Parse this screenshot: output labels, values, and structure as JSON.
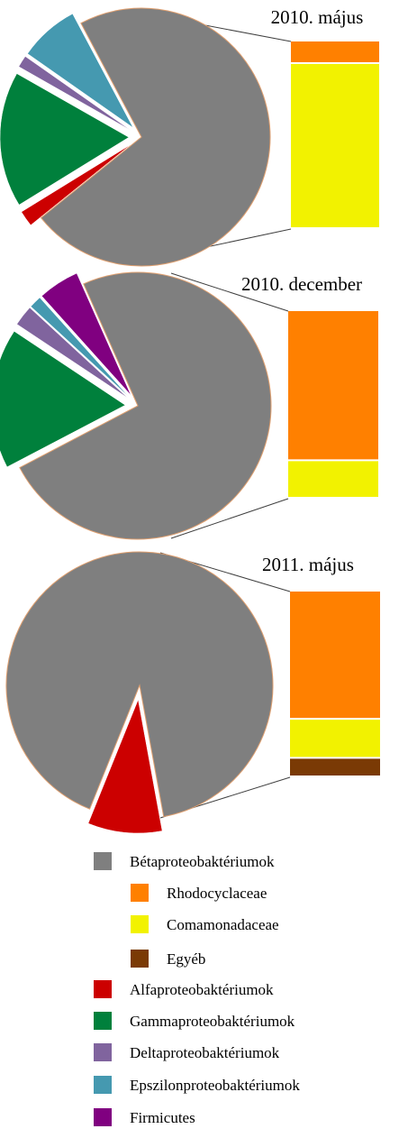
{
  "chart_data": [
    {
      "type": "pie",
      "title": "2010. május",
      "slices": [
        {
          "name": "Bétaproteobaktériumok",
          "value": 72.0,
          "color": "#7f7f7f"
        },
        {
          "name": "Alfaproteobaktériumok",
          "value": 2.0,
          "color": "#cc0000"
        },
        {
          "name": "Gammaproteobaktériumok",
          "value": 17.0,
          "color": "#00803c"
        },
        {
          "name": "Deltaproteobaktériumok",
          "value": 1.5,
          "color": "#80649e"
        },
        {
          "name": "Epszilonproteobaktériumok",
          "value": 7.5,
          "color": "#4599b0"
        }
      ],
      "breakdown": [
        {
          "name": "Rhodocyclaceae",
          "value": 12,
          "color": "#ff8000"
        },
        {
          "name": "Comamonadaceae",
          "value": 88,
          "color": "#f2f200"
        }
      ]
    },
    {
      "type": "pie",
      "title": "2010. december",
      "slices": [
        {
          "name": "Bétaproteobaktériumok",
          "value": 74.0,
          "color": "#7f7f7f"
        },
        {
          "name": "Gammaproteobaktériumok",
          "value": 17.0,
          "color": "#00803c"
        },
        {
          "name": "Deltaproteobaktériumok",
          "value": 2.5,
          "color": "#80649e"
        },
        {
          "name": "Epszilonproteobaktériumok",
          "value": 1.5,
          "color": "#4599b0"
        },
        {
          "name": "Firmicutes",
          "value": 5.0,
          "color": "#800080"
        }
      ],
      "breakdown": [
        {
          "name": "Rhodocyclaceae",
          "value": 80,
          "color": "#ff8000"
        },
        {
          "name": "Comamonadaceae",
          "value": 20,
          "color": "#f2f200"
        }
      ]
    },
    {
      "type": "pie",
      "title": "2011. május",
      "slices": [
        {
          "name": "Bétaproteobaktériumok",
          "value": 91.0,
          "color": "#7f7f7f"
        },
        {
          "name": "Alfaproteobaktériumok",
          "value": 9.0,
          "color": "#cc0000"
        }
      ],
      "breakdown": [
        {
          "name": "Rhodocyclaceae",
          "value": 69,
          "color": "#ff8000"
        },
        {
          "name": "Comamonadaceae",
          "value": 21,
          "color": "#f2f200"
        },
        {
          "name": "Egyéb",
          "value": 10,
          "color": "#7a3a05"
        }
      ]
    }
  ],
  "legend": [
    {
      "label": "Bétaproteobaktériumok",
      "color": "#7f7f7f"
    },
    {
      "label": "Rhodocyclaceae",
      "color": "#ff8000"
    },
    {
      "label": "Comamonadaceae",
      "color": "#f2f200"
    },
    {
      "label": "Egyéb",
      "color": "#7a3a05"
    },
    {
      "label": "Alfaproteobaktériumok",
      "color": "#cc0000"
    },
    {
      "label": "Gammaproteobaktériumok",
      "color": "#00803c"
    },
    {
      "label": "Deltaproteobaktériumok",
      "color": "#80649e"
    },
    {
      "label": "Epszilonproteobaktériumok",
      "color": "#4599b0"
    },
    {
      "label": "Firmicutes",
      "color": "#800080"
    }
  ]
}
